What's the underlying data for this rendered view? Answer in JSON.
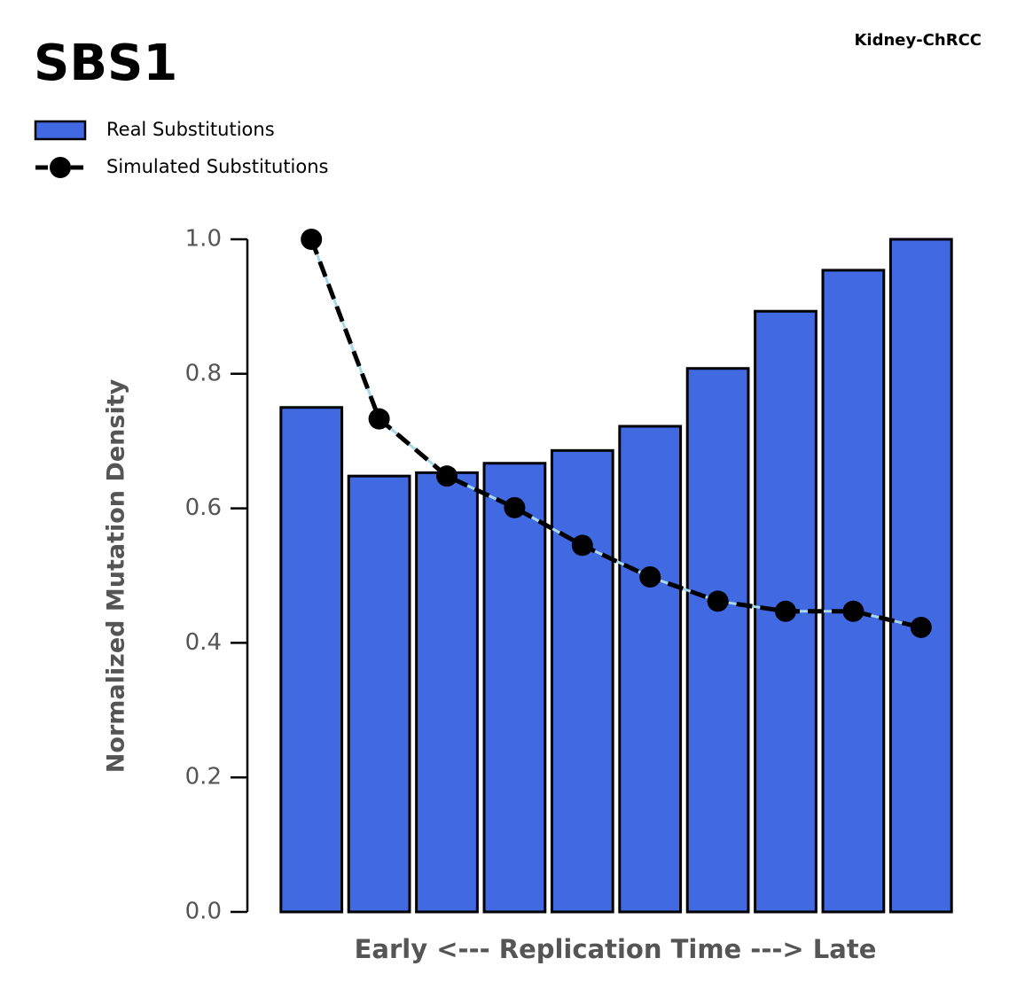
{
  "chart_data": {
    "type": "bar",
    "title": "SBS1",
    "subtitle": "Kidney-ChRCC",
    "x_label": "Early <--- Replication Time ---> Late",
    "y_label": "Normalized Mutation Density",
    "categories": [
      null,
      null,
      null,
      null,
      null,
      null,
      null,
      null,
      null,
      null
    ],
    "series": [
      {
        "name": "Real Substitutions",
        "type": "bar",
        "color": "#4169e1",
        "values": [
          0.75,
          0.648,
          0.653,
          0.667,
          0.686,
          0.722,
          0.808,
          0.893,
          0.954,
          1.0
        ]
      },
      {
        "name": "Simulated Substitutions",
        "type": "line",
        "color": "#000000",
        "values": [
          1.0,
          0.733,
          0.648,
          0.601,
          0.545,
          0.498,
          0.462,
          0.447,
          0.447,
          0.423
        ]
      }
    ],
    "ylim": [
      0,
      1
    ],
    "yticks": [
      {
        "value": 0,
        "label": "0.0"
      },
      0.2,
      0.4,
      0.6,
      0.8,
      {
        "value": 1,
        "label": "1.0"
      }
    ],
    "grid": false,
    "legend": "top-left"
  }
}
